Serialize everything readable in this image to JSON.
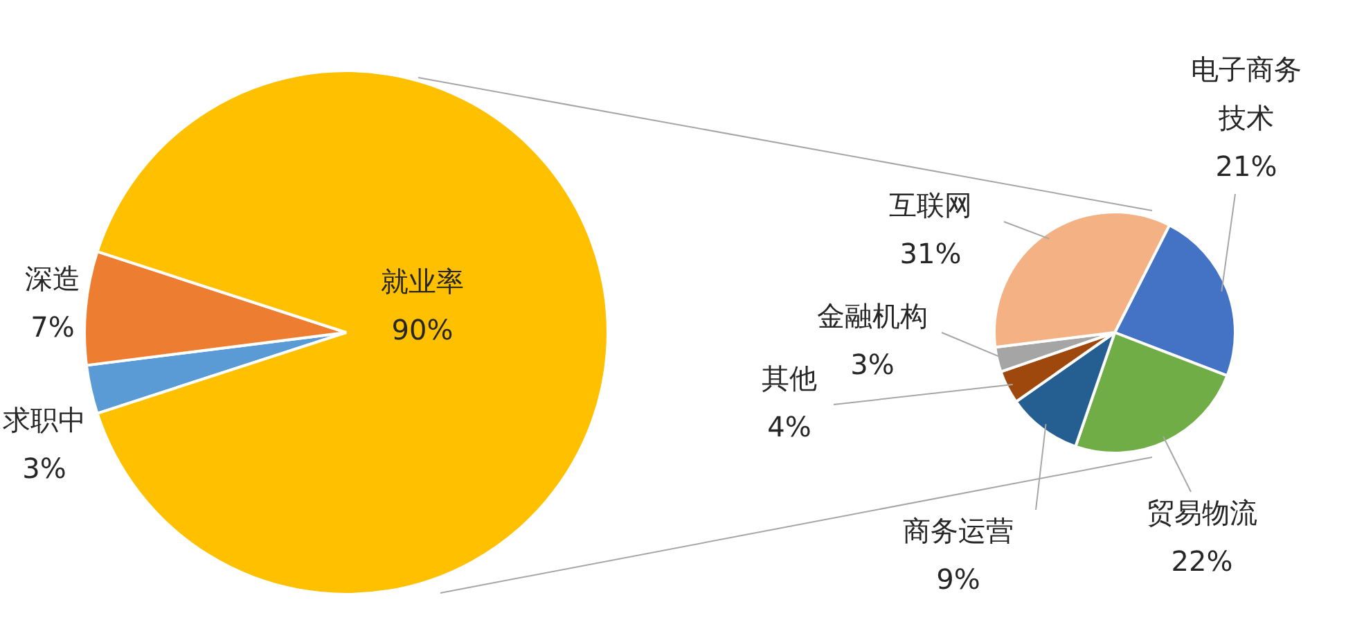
{
  "chart_data": [
    {
      "type": "pie",
      "categories": [
        "求职中",
        "深造",
        "就业率"
      ],
      "values": [
        3,
        7,
        90
      ],
      "colors": [
        "#5b9bd5",
        "#ed7d31",
        "#ffc000"
      ],
      "value_labels": [
        "3%",
        "7%",
        "90%"
      ],
      "legend": false
    },
    {
      "type": "pie",
      "categories": [
        "电子商务技术",
        "贸易物流",
        "商务运营",
        "其他",
        "金融机构",
        "互联网"
      ],
      "values": [
        21,
        22,
        9,
        4,
        3,
        31
      ],
      "colors": [
        "#4472c4",
        "#70ad47",
        "#255e91",
        "#9e480e",
        "#a5a5a5",
        "#f4b183"
      ],
      "value_labels": [
        "21%",
        "22%",
        "9%",
        "4%",
        "3%",
        "31%"
      ],
      "legend": false
    }
  ]
}
